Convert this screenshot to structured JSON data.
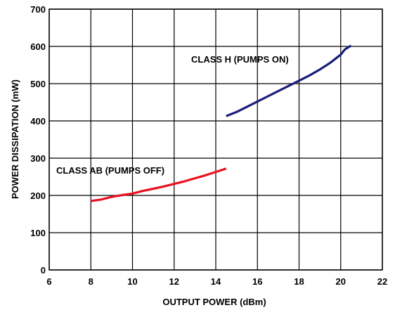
{
  "chart_data": {
    "type": "line",
    "title": "",
    "xlabel": "OUTPUT POWER (dBm)",
    "ylabel": "POWER DISSIPATION (mW)",
    "xlim": [
      6,
      22
    ],
    "ylim": [
      0,
      700
    ],
    "xticks": [
      6,
      8,
      10,
      12,
      14,
      16,
      18,
      20,
      22
    ],
    "yticks": [
      0,
      100,
      200,
      300,
      400,
      500,
      600,
      700
    ],
    "grid": true,
    "legend": "none",
    "series": [
      {
        "name": "CLASS AB (PUMPS OFF)",
        "color": "#e8121f",
        "points": [
          [
            8.0,
            185
          ],
          [
            8.5,
            189
          ],
          [
            9.0,
            196
          ],
          [
            9.5,
            201
          ],
          [
            10.0,
            205
          ],
          [
            10.5,
            212
          ],
          [
            11.0,
            218
          ],
          [
            11.5,
            224
          ],
          [
            12.0,
            231
          ],
          [
            12.5,
            238
          ],
          [
            13.0,
            246
          ],
          [
            13.5,
            254
          ],
          [
            14.0,
            263
          ],
          [
            14.5,
            272
          ]
        ]
      },
      {
        "name": "CLASS H (PUMPS ON)",
        "color": "#1b1f7a",
        "points": [
          [
            14.5,
            413
          ],
          [
            15.0,
            424
          ],
          [
            15.5,
            438
          ],
          [
            16.0,
            452
          ],
          [
            16.5,
            466
          ],
          [
            17.0,
            480
          ],
          [
            17.5,
            494
          ],
          [
            18.0,
            508
          ],
          [
            18.5,
            522
          ],
          [
            19.0,
            538
          ],
          [
            19.5,
            556
          ],
          [
            20.0,
            578
          ],
          [
            20.2,
            592
          ],
          [
            20.5,
            602
          ]
        ]
      }
    ]
  }
}
